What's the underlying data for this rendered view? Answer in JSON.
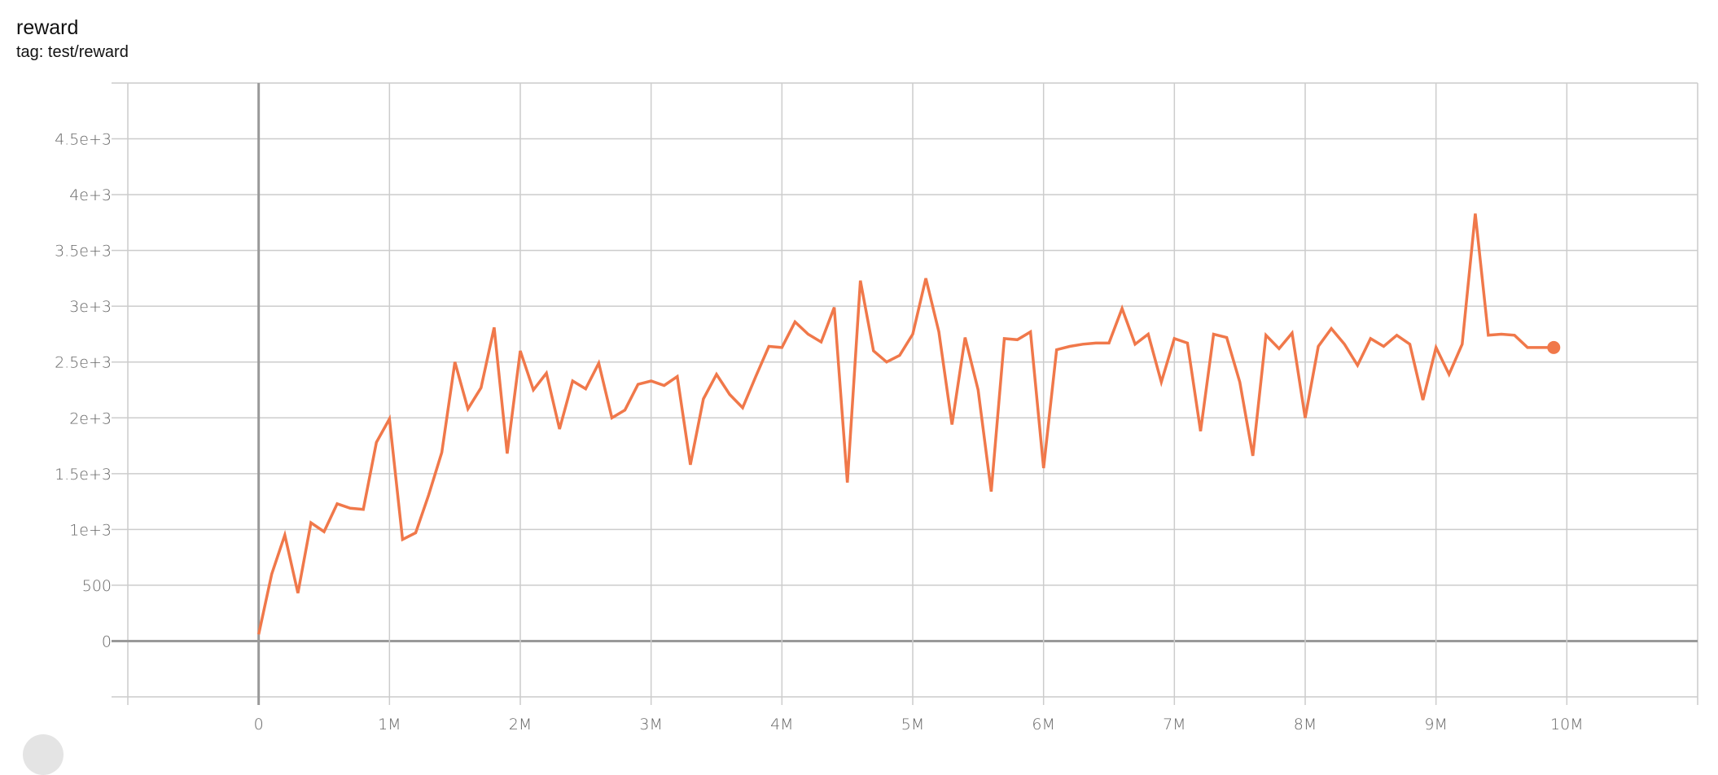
{
  "card": {
    "title": "reward",
    "subtitle": "tag: test/reward"
  },
  "colors": {
    "series": "#f0784a",
    "grid": "#cccccc",
    "axis": "#999999"
  },
  "chart_data": {
    "type": "line",
    "title": "reward",
    "subtitle": "tag: test/reward",
    "xlim": [
      -1000000,
      11000000
    ],
    "ylim": [
      -500,
      5000
    ],
    "grid": true,
    "x_ticks": [
      {
        "v": 0,
        "label": "0"
      },
      {
        "v": 1000000,
        "label": "1M"
      },
      {
        "v": 2000000,
        "label": "2M"
      },
      {
        "v": 3000000,
        "label": "3M"
      },
      {
        "v": 4000000,
        "label": "4M"
      },
      {
        "v": 5000000,
        "label": "5M"
      },
      {
        "v": 6000000,
        "label": "6M"
      },
      {
        "v": 7000000,
        "label": "7M"
      },
      {
        "v": 8000000,
        "label": "8M"
      },
      {
        "v": 9000000,
        "label": "9M"
      },
      {
        "v": 10000000,
        "label": "10M"
      }
    ],
    "y_ticks": [
      {
        "v": 0,
        "label": "0"
      },
      {
        "v": 500,
        "label": "500"
      },
      {
        "v": 1000,
        "label": "1e+3"
      },
      {
        "v": 1500,
        "label": "1.5e+3"
      },
      {
        "v": 2000,
        "label": "2e+3"
      },
      {
        "v": 2500,
        "label": "2.5e+3"
      },
      {
        "v": 3000,
        "label": "3e+3"
      },
      {
        "v": 3500,
        "label": "3.5e+3"
      },
      {
        "v": 4000,
        "label": "4e+3"
      },
      {
        "v": 4500,
        "label": "4.5e+3"
      }
    ],
    "x_step": 100000,
    "values": [
      60,
      600,
      950,
      430,
      1060,
      980,
      1230,
      1190,
      1180,
      1780,
      1990,
      910,
      970,
      1310,
      1690,
      2500,
      2080,
      2270,
      2810,
      1680,
      2600,
      2250,
      2400,
      1900,
      2330,
      2260,
      2490,
      2000,
      2070,
      2300,
      2330,
      2290,
      2370,
      1580,
      2170,
      2390,
      2210,
      2090,
      2370,
      2640,
      2630,
      2860,
      2750,
      2680,
      2990,
      1420,
      3230,
      2600,
      2500,
      2560,
      2750,
      3250,
      2770,
      1940,
      2720,
      2250,
      1340,
      2710,
      2700,
      2770,
      1550,
      2610,
      2640,
      2660,
      2670,
      2670,
      2980,
      2660,
      2750,
      2320,
      2710,
      2670,
      1880,
      2750,
      2720,
      2320,
      1660,
      2740,
      2620,
      2760,
      2000,
      2640,
      2800,
      2660,
      2470,
      2710,
      2640,
      2740,
      2660,
      2160,
      2630,
      2390,
      2660,
      3830,
      2740,
      2750,
      2740,
      2630,
      2630,
      2630
    ]
  }
}
